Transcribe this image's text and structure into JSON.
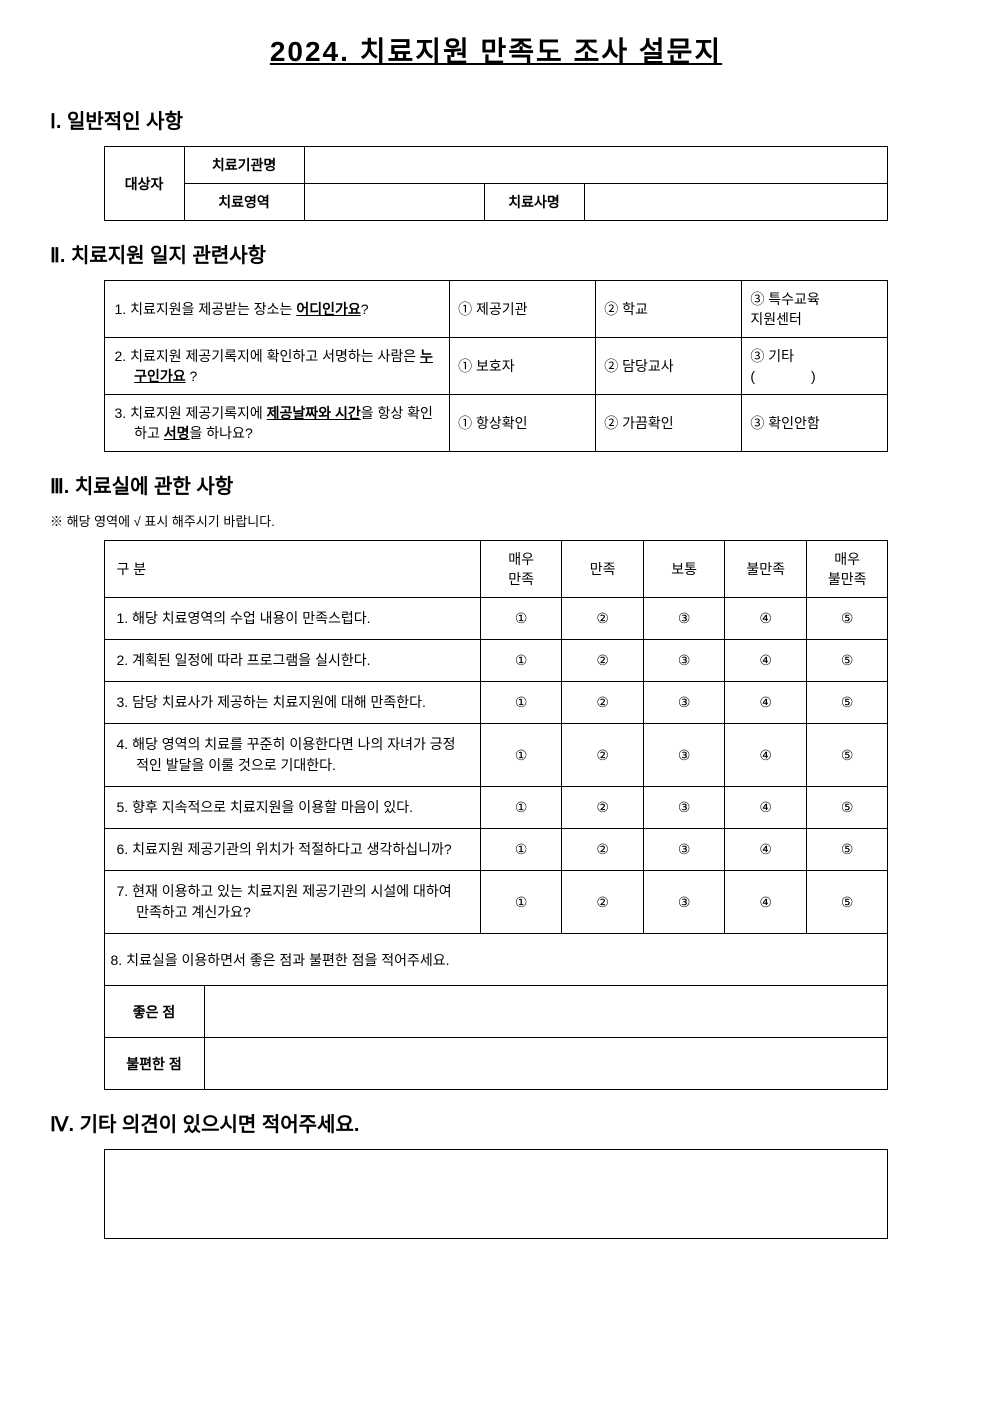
{
  "title": "2024. 치료지원 만족도 조사 설문지",
  "section1": {
    "header": "Ⅰ. 일반적인 사항",
    "subject_label": "대상자",
    "institution_label": "치료기관명",
    "area_label": "치료영역",
    "therapist_label": "치료사명"
  },
  "section2": {
    "header": "Ⅱ. 치료지원 일지 관련사항",
    "questions": [
      {
        "prefix": "1. 치료지원을 제공받는 장소는 ",
        "bold_underline": "어디인가요",
        "suffix": "?",
        "opts": [
          "① 제공기관",
          "② 학교",
          "③ 특수교육\n지원센터"
        ]
      },
      {
        "prefix": "2. 치료지원 제공기록지에 확인하고 서명하는 사람은 ",
        "bold_underline": "누구인가요",
        "suffix": " ?",
        "opts": [
          "① 보호자",
          "② 담당교사",
          "③ 기타\n(　　　　)"
        ]
      },
      {
        "prefix": "3. 치료지원 제공기록지에 ",
        "bold_underline": "제공날짜와 시간",
        "mid": "을 항상 확인하고 ",
        "bold_underline2": "서명",
        "suffix": "을 하나요?",
        "opts": [
          "① 항상확인",
          "② 가끔확인",
          "③ 확인안함"
        ]
      }
    ]
  },
  "section3": {
    "header": "Ⅲ. 치료실에 관한 사항",
    "note": "※ 해당 영역에 √ 표시 해주시기 바랍니다.",
    "col_header": "구 분",
    "rating_headers": [
      "매우\n만족",
      "만족",
      "보통",
      "불만족",
      "매우\n불만족"
    ],
    "rating_marks": [
      "①",
      "②",
      "③",
      "④",
      "⑤"
    ],
    "items": [
      "1. 해당 치료영역의 수업 내용이 만족스럽다.",
      "2. 계획된 일정에 따라 프로그램을 실시한다.",
      "3. 담당 치료사가 제공하는 치료지원에 대해 만족한다.",
      "4. 해당 영역의 치료를 꾸준히 이용한다면 나의 자녀가 긍정적인 발달을 이룰 것으로 기대한다.",
      "5. 향후 지속적으로 치료지원을 이용할 마음이 있다.",
      "6. 치료지원 제공기관의 위치가 적절하다고 생각하십니까?",
      "7. 현재 이용하고 있는 치료지원 제공기관의 시설에 대하여 만족하고 계신가요?"
    ],
    "free_item": "8. 치료실을 이용하면서 좋은 점과 불편한 점을 적어주세요.",
    "good_label": "좋은 점",
    "bad_label": "불편한 점"
  },
  "section4": {
    "header": "Ⅳ. 기타 의견이 있으시면 적어주세요."
  }
}
